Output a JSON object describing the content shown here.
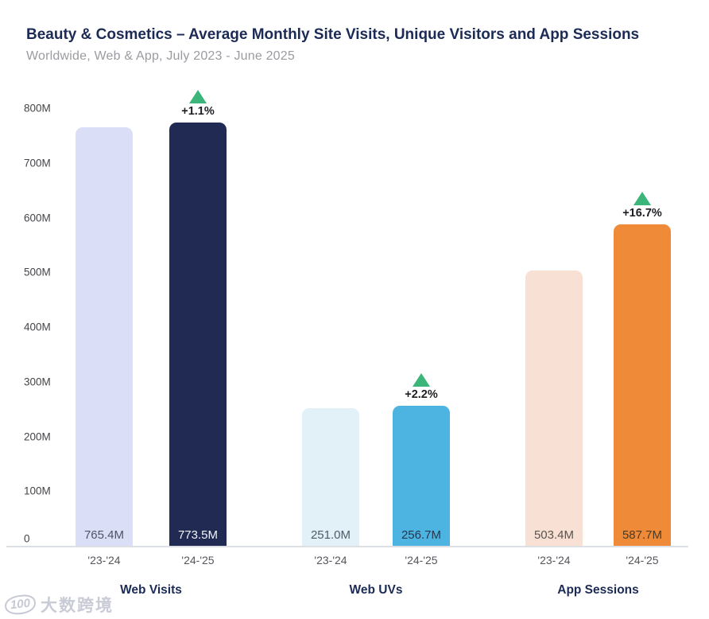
{
  "header": {
    "title": "Beauty & Cosmetics – Average Monthly Site Visits, Unique Visitors and App Sessions",
    "subtitle": "Worldwide, Web & App, July 2023 - June 2025"
  },
  "watermark": {
    "logo_text": "100",
    "brand_text": "大数跨境"
  },
  "colors": {
    "title_navy": "#1c2b55",
    "subtitle_gray": "#9b9ba1",
    "axis_label_gray": "#454549",
    "axis_line": "#dcdfe4",
    "change_green": "#3bb579",
    "watermark_gray": "#c9ccd6"
  },
  "chart_data": {
    "type": "bar",
    "title": "Beauty & Cosmetics – Average Monthly Site Visits, Unique Visitors and App Sessions",
    "subtitle": "Worldwide, Web & App, July 2023 - June 2025",
    "unit": "M",
    "ylim": [
      0,
      800
    ],
    "yticks": [
      "0",
      "100M",
      "200M",
      "300M",
      "400M",
      "500M",
      "600M",
      "700M",
      "800M"
    ],
    "ytick_values": [
      0,
      100,
      200,
      300,
      400,
      500,
      600,
      700,
      800
    ],
    "grid": false,
    "legend": "none",
    "categories": [
      "'23-'24",
      "'24-'25"
    ],
    "change_marker": "up-triangle",
    "change_color": "#3bb579",
    "groups": [
      {
        "label": "Web Visits",
        "change": "+1.1%",
        "series": [
          {
            "category": "'23-'24",
            "value": 765.4,
            "value_label": "765.4M",
            "color": "#dadff7",
            "text_color": "#4e5366"
          },
          {
            "category": "'24-'25",
            "value": 773.5,
            "value_label": "773.5M",
            "color": "#212a52",
            "text_color": "#f2f4fa"
          }
        ]
      },
      {
        "label": "Web UVs",
        "change": "+2.2%",
        "series": [
          {
            "category": "'23-'24",
            "value": 251.0,
            "value_label": "251.0M",
            "color": "#e2f1f8",
            "text_color": "#51596a"
          },
          {
            "category": "'24-'25",
            "value": 256.7,
            "value_label": "256.7M",
            "color": "#4db3e0",
            "text_color": "#26374f"
          }
        ]
      },
      {
        "label": "App Sessions",
        "change": "+16.7%",
        "series": [
          {
            "category": "'23-'24",
            "value": 503.4,
            "value_label": "503.4M",
            "color": "#f8e0d4",
            "text_color": "#59544e"
          },
          {
            "category": "'24-'25",
            "value": 587.7,
            "value_label": "587.7M",
            "color": "#ee8a38",
            "text_color": "#4c3a22"
          }
        ]
      }
    ]
  }
}
